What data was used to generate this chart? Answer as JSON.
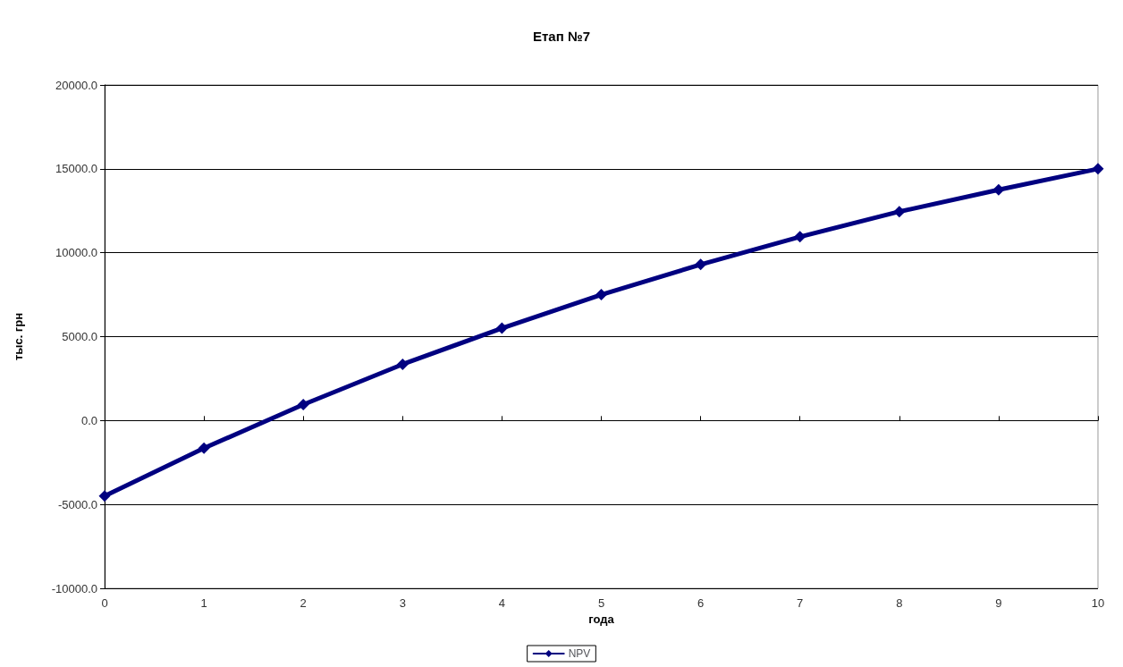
{
  "chart_data": {
    "type": "line",
    "title": "Етап №7",
    "xlabel": "года",
    "ylabel": "тыс. грн",
    "x": [
      0,
      1,
      2,
      3,
      4,
      5,
      6,
      7,
      8,
      9,
      10
    ],
    "series": [
      {
        "name": "NPV",
        "color": "#000080",
        "values": [
          -4500,
          -1650,
          950,
          3350,
          5500,
          7500,
          9300,
          10950,
          12450,
          13750,
          15000
        ]
      }
    ],
    "xlim": [
      0,
      10
    ],
    "xticks": [
      0,
      1,
      2,
      3,
      4,
      5,
      6,
      7,
      8,
      9,
      10
    ],
    "ylim": [
      -10000,
      20000
    ],
    "yticks": [
      {
        "value": -10000,
        "label": "-10000.0"
      },
      {
        "value": -5000,
        "label": "-5000.0"
      },
      {
        "value": 0,
        "label": "0.0"
      },
      {
        "value": 5000,
        "label": "5000.0"
      },
      {
        "value": 10000,
        "label": "10000.0"
      },
      {
        "value": 15000,
        "label": "15000.0"
      },
      {
        "value": 20000,
        "label": "20000.0"
      }
    ],
    "grid": "y",
    "legend": "bottom",
    "marker": "diamond",
    "line_style": "solid"
  }
}
